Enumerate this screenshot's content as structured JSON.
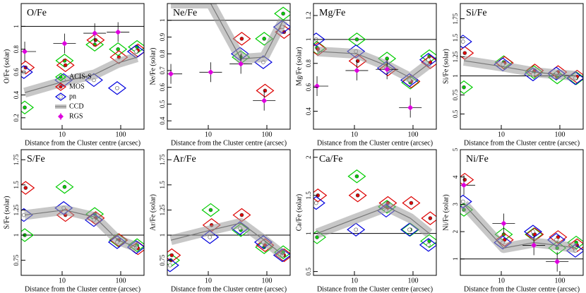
{
  "chart_data": [
    {
      "type": "scatter",
      "title": "O/Fe",
      "ylabel": "O/Fe (solar)",
      "xlabel": "Distance from the Cluster centre (arcsec)",
      "xscale": "log",
      "xlim": [
        2,
        250
      ],
      "xticks": [
        10,
        100
      ],
      "ylim": [
        0.1,
        1.2
      ],
      "yticks": [
        0.2,
        0.4,
        0.6,
        0.8,
        1
      ],
      "refline": 1,
      "legend": "lower left",
      "x": [
        2.3,
        11,
        36,
        90,
        190
      ],
      "series": [
        {
          "name": "ACIS-S",
          "color": "#00cc00",
          "marker": "filled",
          "values": [
            0.29,
            0.7,
            0.84,
            0.8,
            0.82
          ]
        },
        {
          "name": "MOS",
          "color": "#dd0000",
          "marker": "filled",
          "values": [
            0.64,
            0.66,
            0.88,
            0.73,
            0.79
          ]
        },
        {
          "name": "pn",
          "color": "#0000dd",
          "marker": "open",
          "values": [
            0.6,
            0.53,
            0.53,
            0.46,
            0.78
          ]
        },
        {
          "name": "CCD",
          "color": "#999999",
          "marker": "band",
          "values": [
            0.42,
            0.52,
            0.58,
            0.68,
            0.73
          ]
        },
        {
          "name": "RGS",
          "color": "#dd00dd",
          "marker": "cross",
          "values": [
            0.78,
            0.85,
            0.94,
            0.95,
            null
          ]
        }
      ]
    },
    {
      "type": "scatter",
      "title": "Ne/Fe",
      "ylabel": "Ne/Fe (solar)",
      "xlabel": "Distance from the Cluster centre (arcsec)",
      "xscale": "log",
      "xlim": [
        2,
        250
      ],
      "xticks": [
        10,
        100
      ],
      "ylim": [
        0.35,
        1.1
      ],
      "yticks": [
        0.4,
        0.5,
        0.6,
        0.7,
        0.8,
        0.9,
        1
      ],
      "refline": 1,
      "x": [
        2.3,
        11,
        36,
        90,
        190
      ],
      "series": [
        {
          "color": "#00cc00",
          "marker": "filled",
          "values": [
            null,
            null,
            0.78,
            0.89,
            1.04
          ]
        },
        {
          "color": "#dd0000",
          "marker": "filled",
          "values": [
            null,
            null,
            0.89,
            0.58,
            0.93
          ]
        },
        {
          "color": "#0000dd",
          "marker": "open",
          "values": [
            null,
            null,
            0.8,
            0.75,
            0.96
          ]
        },
        {
          "color": "#999999",
          "marker": "band",
          "values": [
            1.1,
            1.1,
            0.77,
            0.78,
            1.0
          ]
        },
        {
          "color": "#dd00dd",
          "marker": "cross",
          "values": [
            0.68,
            0.69,
            0.74,
            0.52,
            null
          ]
        }
      ]
    },
    {
      "type": "scatter",
      "title": "Mg/Fe",
      "ylabel": "Mg/Fe (solar)",
      "xlabel": "Distance from the Cluster centre (arcsec)",
      "xscale": "log",
      "xlim": [
        2,
        250
      ],
      "xticks": [
        10,
        100
      ],
      "ylim": [
        0.25,
        1.3
      ],
      "yticks": [
        0.4,
        0.6,
        0.8,
        1,
        1.2
      ],
      "refline": 1,
      "x": [
        2.3,
        11,
        36,
        90,
        190
      ],
      "series": [
        {
          "color": "#00cc00",
          "marker": "filled",
          "values": [
            0.93,
            1.0,
            0.84,
            0.64,
            0.86
          ]
        },
        {
          "color": "#dd0000",
          "marker": "filled",
          "values": [
            0.92,
            0.82,
            0.75,
            0.65,
            0.81
          ]
        },
        {
          "color": "#0000dd",
          "marker": "open",
          "values": [
            1.0,
            0.9,
            0.76,
            0.66,
            0.83
          ]
        },
        {
          "color": "#999999",
          "marker": "band",
          "values": [
            0.9,
            0.88,
            0.78,
            0.68,
            0.8
          ]
        },
        {
          "color": "#dd00dd",
          "marker": "cross",
          "values": [
            0.61,
            0.74,
            0.75,
            0.43,
            null
          ]
        }
      ]
    },
    {
      "type": "scatter",
      "title": "Si/Fe",
      "ylabel": "Si/Fe (solar)",
      "xlabel": "Distance from the Cluster centre (arcsec)",
      "xscale": "log",
      "xlim": [
        2,
        250
      ],
      "xticks": [
        10,
        100
      ],
      "ylim": [
        0.3,
        1.95
      ],
      "yticks": [
        0.5,
        0.75,
        1,
        1.25,
        1.5,
        1.75
      ],
      "refline": 1,
      "x": [
        2.3,
        11,
        36,
        90,
        190
      ],
      "series": [
        {
          "color": "#00cc00",
          "marker": "filled",
          "values": [
            0.85,
            1.18,
            1.05,
            0.98,
            0.97
          ]
        },
        {
          "color": "#dd0000",
          "marker": "filled",
          "values": [
            1.3,
            1.17,
            1.07,
            1.05,
            0.99
          ]
        },
        {
          "color": "#0000dd",
          "marker": "open",
          "values": [
            1.45,
            1.15,
            1.02,
            1.03,
            0.97
          ]
        },
        {
          "color": "#999999",
          "marker": "band",
          "values": [
            1.2,
            1.12,
            1.05,
            1.02,
            1.0
          ]
        }
      ]
    },
    {
      "type": "scatter",
      "title": "S/Fe",
      "ylabel": "S/Fe (solar)",
      "xlabel": "Distance from the Cluster centre (arcsec)",
      "xscale": "log",
      "xlim": [
        2,
        250
      ],
      "xticks": [
        10,
        100
      ],
      "ylim": [
        0.6,
        1.85
      ],
      "yticks": [
        0.75,
        1,
        1.25,
        1.5,
        1.75
      ],
      "refline": 1,
      "x": [
        2.3,
        11,
        36,
        90,
        190
      ],
      "series": [
        {
          "color": "#00cc00",
          "marker": "filled",
          "values": [
            1.0,
            1.48,
            1.21,
            0.95,
            0.9
          ]
        },
        {
          "color": "#dd0000",
          "marker": "filled",
          "values": [
            1.47,
            1.2,
            1.17,
            0.95,
            0.87
          ]
        },
        {
          "color": "#0000dd",
          "marker": "open",
          "values": [
            1.2,
            1.27,
            1.15,
            0.93,
            0.88
          ]
        },
        {
          "color": "#999999",
          "marker": "band",
          "values": [
            1.2,
            1.25,
            1.18,
            0.95,
            0.88
          ]
        }
      ]
    },
    {
      "type": "scatter",
      "title": "Ar/Fe",
      "ylabel": "Ar/Fe (solar)",
      "xlabel": "Distance from the Cluster centre (arcsec)",
      "xscale": "log",
      "xlim": [
        2,
        250
      ],
      "xticks": [
        10,
        100
      ],
      "ylim": [
        0.6,
        1.85
      ],
      "yticks": [
        0.75,
        1,
        1.25,
        1.5,
        1.75
      ],
      "refline": 1,
      "x": [
        2.3,
        11,
        36,
        90,
        190
      ],
      "series": [
        {
          "color": "#00cc00",
          "marker": "filled",
          "values": [
            0.75,
            1.25,
            1.05,
            0.88,
            0.83
          ]
        },
        {
          "color": "#dd0000",
          "marker": "filled",
          "values": [
            0.8,
            1.1,
            1.2,
            0.9,
            0.8
          ]
        },
        {
          "color": "#0000dd",
          "marker": "open",
          "values": [
            0.7,
            0.98,
            1.07,
            0.93,
            0.8
          ]
        },
        {
          "color": "#999999",
          "marker": "band",
          "values": [
            0.95,
            1.05,
            1.12,
            0.95,
            0.8
          ]
        }
      ]
    },
    {
      "type": "scatter",
      "title": "Ca/Fe",
      "ylabel": "Ca/Fe (solar)",
      "xlabel": "Distance from the Cluster centre (arcsec)",
      "xscale": "log",
      "xlim": [
        2,
        250
      ],
      "xticks": [
        10,
        100
      ],
      "ylim": [
        0.45,
        2.1
      ],
      "yticks": [
        0.5,
        1,
        1.5,
        2
      ],
      "refline": 1,
      "x": [
        2.3,
        11,
        36,
        90,
        190
      ],
      "series": [
        {
          "color": "#00cc00",
          "marker": "filled",
          "values": [
            0.95,
            1.75,
            1.35,
            1.05,
            0.9
          ]
        },
        {
          "color": "#dd0000",
          "marker": "filled",
          "values": [
            1.5,
            1.5,
            1.4,
            1.4,
            1.2
          ]
        },
        {
          "color": "#0000dd",
          "marker": "open",
          "values": [
            1.4,
            1.05,
            1.3,
            1.05,
            0.85
          ]
        },
        {
          "color": "#999999",
          "marker": "band",
          "values": [
            1.0,
            1.2,
            1.35,
            1.2,
            1.0
          ]
        }
      ]
    },
    {
      "type": "scatter",
      "title": "Ni/Fe",
      "ylabel": "Ni/Fe (solar)",
      "xlabel": "Distance from the Cluster centre (arcsec)",
      "xscale": "log",
      "xlim": [
        2,
        250
      ],
      "xticks": [
        10,
        100
      ],
      "ylim": [
        0.4,
        5
      ],
      "yticks": [
        1,
        2,
        3,
        4,
        5
      ],
      "refline": 1,
      "x": [
        2.3,
        11,
        36,
        90,
        190
      ],
      "series": [
        {
          "color": "#00cc00",
          "marker": "filled",
          "values": [
            2.8,
            1.9,
            1.9,
            1.4,
            1.6
          ]
        },
        {
          "color": "#dd0000",
          "marker": "filled",
          "values": [
            3.9,
            1.7,
            1.9,
            1.8,
            1.5
          ]
        },
        {
          "color": "#0000dd",
          "marker": "open",
          "values": [
            3.1,
            1.6,
            2.0,
            1.7,
            1.3
          ]
        },
        {
          "color": "#999999",
          "marker": "band",
          "values": [
            3.0,
            1.4,
            1.6,
            1.5,
            1.4
          ]
        },
        {
          "color": "#dd00dd",
          "marker": "cross",
          "values": [
            3.7,
            2.3,
            1.5,
            0.9,
            null
          ]
        }
      ]
    }
  ]
}
